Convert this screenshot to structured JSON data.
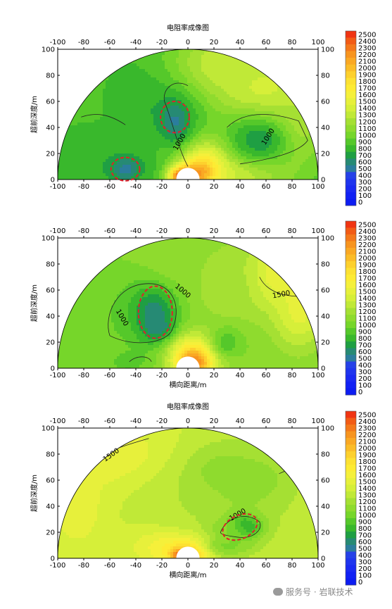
{
  "chart_data": [
    {
      "type": "heatmap",
      "title": "电阻率成像图",
      "xlabel": "",
      "ylabel": "超前深度/m",
      "xlim": [
        -100,
        100
      ],
      "ylim": [
        0,
        100
      ],
      "x_ticks": [
        "-100",
        "-80",
        "-60",
        "-40",
        "-20",
        "0",
        "20",
        "40",
        "60",
        "80",
        "100"
      ],
      "y_ticks": [
        "0",
        "20",
        "40",
        "60",
        "80",
        "100"
      ],
      "colorbar": [
        "2500",
        "2400",
        "2300",
        "2200",
        "2100",
        "2000",
        "1900",
        "1800",
        "1700",
        "1600",
        "1500",
        "1400",
        "1300",
        "1200",
        "1100",
        "1000",
        "900",
        "800",
        "700",
        "600",
        "500",
        "400",
        "300",
        "200",
        "100",
        "0"
      ],
      "contour_labels": [
        "1000",
        "1000"
      ],
      "anomaly_markers": [
        {
          "x": -48,
          "y": 8
        },
        {
          "x": -10,
          "y": 48
        }
      ]
    },
    {
      "type": "heatmap",
      "title": "",
      "xlabel": "横向距离/m",
      "ylabel": "超前深度/m",
      "xlim": [
        -100,
        100
      ],
      "ylim": [
        0,
        100
      ],
      "x_ticks": [
        "-100",
        "-80",
        "-60",
        "-40",
        "-20",
        "0",
        "20",
        "40",
        "60",
        "80",
        "100"
      ],
      "y_ticks": [
        "0",
        "20",
        "40",
        "60",
        "80",
        "100"
      ],
      "colorbar": [
        "2500",
        "2400",
        "2300",
        "2200",
        "2100",
        "2000",
        "1900",
        "1800",
        "1700",
        "1600",
        "1500",
        "1400",
        "1300",
        "1200",
        "1100",
        "1000",
        "900",
        "800",
        "700",
        "600",
        "500",
        "400",
        "300",
        "200",
        "100",
        "0"
      ],
      "contour_labels": [
        "1000",
        "1000",
        "1500"
      ],
      "anomaly_markers": [
        {
          "x": -25,
          "y": 43
        }
      ]
    },
    {
      "type": "heatmap",
      "title": "电阻率成像图",
      "xlabel": "横向距离/m",
      "ylabel": "超前深度/m",
      "xlim": [
        -100,
        100
      ],
      "ylim": [
        0,
        100
      ],
      "x_ticks": [
        "-100",
        "-80",
        "-60",
        "-40",
        "-20",
        "0",
        "20",
        "40",
        "60",
        "80",
        "100"
      ],
      "y_ticks": [
        "0",
        "20",
        "40",
        "60",
        "80",
        "100"
      ],
      "colorbar": [
        "2500",
        "2400",
        "2300",
        "2200",
        "2100",
        "2000",
        "1900",
        "1800",
        "1700",
        "1600",
        "1500",
        "1400",
        "1300",
        "1200",
        "1100",
        "1000",
        "900",
        "800",
        "700",
        "600",
        "500",
        "400",
        "300",
        "200",
        "100",
        "0"
      ],
      "contour_labels": [
        "1500",
        "1000"
      ],
      "anomaly_markers": [
        {
          "x": 40,
          "y": 24
        }
      ]
    }
  ],
  "watermark": "服务号 · 岩联技术",
  "colors": {
    "scale": [
      "#f03412",
      "#f25b15",
      "#f4781a",
      "#f7941f",
      "#faa823",
      "#fbbc27",
      "#fdd02d",
      "#fde132",
      "#fdeb33",
      "#f5f03a",
      "#e7f03b",
      "#d6ef39",
      "#c0e937",
      "#a5e033",
      "#8fdb2e",
      "#76d62a",
      "#55c82a",
      "#39b82c",
      "#1f9f43",
      "#268a74",
      "#2b7d9d",
      "#2541e8",
      "#1f35ee",
      "#1a2af2",
      "#1121f4",
      "#0c1cf2"
    ]
  }
}
